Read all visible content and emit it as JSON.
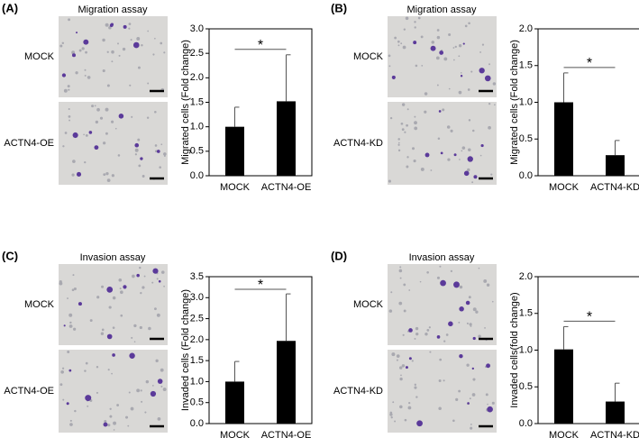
{
  "chart_data": [
    {
      "type": "bar",
      "panel_label": "(A)",
      "image_title": "Migration assay",
      "image_labels": [
        "MOCK",
        "ACTN4-OE"
      ],
      "ylabel": "Migrated cells (Fold change)",
      "categories": [
        "MOCK",
        "ACTN4-OE"
      ],
      "values": [
        1.0,
        1.52
      ],
      "errors": [
        0.4,
        0.95
      ],
      "color": "#000000",
      "significance": "*",
      "ylim": [
        0,
        3
      ],
      "yticks": [
        {
          "value": 0,
          "label": "0.0"
        },
        {
          "value": 0.5,
          "label": "0.5"
        },
        {
          "value": 1,
          "label": "1.0"
        },
        {
          "value": 1.5,
          "label": "1.5"
        },
        {
          "value": 2,
          "label": "2.0"
        },
        {
          "value": 2.5,
          "label": "2.5"
        },
        {
          "value": 3,
          "label": "3.0"
        }
      ]
    },
    {
      "type": "bar",
      "panel_label": "(B)",
      "image_title": "Migration assay",
      "image_labels": [
        "MOCK",
        "ACTN4-KD"
      ],
      "ylabel": "Migrated cells (Fold change)",
      "categories": [
        "MOCK",
        "ACTN4-KD"
      ],
      "values": [
        1.0,
        0.28
      ],
      "errors": [
        0.4,
        0.2
      ],
      "color": "#000000",
      "significance": "*",
      "ylim": [
        0,
        2
      ],
      "yticks": [
        {
          "value": 0,
          "label": "0.0"
        },
        {
          "value": 0.5,
          "label": "0.5"
        },
        {
          "value": 1,
          "label": "1.0"
        },
        {
          "value": 1.5,
          "label": "1.5"
        },
        {
          "value": 2,
          "label": "2.0"
        }
      ]
    },
    {
      "type": "bar",
      "panel_label": "(C)",
      "image_title": "Invasion assay",
      "image_labels": [
        "MOCK",
        "ACTN4-OE"
      ],
      "ylabel": "Invaded cells (Fold change)",
      "categories": [
        "MOCK",
        "ACTN4-OE"
      ],
      "values": [
        1.0,
        1.97
      ],
      "errors": [
        0.48,
        1.12
      ],
      "color": "#000000",
      "significance": "*",
      "ylim": [
        0,
        3.5
      ],
      "yticks": [
        {
          "value": 0,
          "label": "0.0"
        },
        {
          "value": 0.5,
          "label": "0.5"
        },
        {
          "value": 1,
          "label": "1.0"
        },
        {
          "value": 1.5,
          "label": "1.5"
        },
        {
          "value": 2,
          "label": "2.0"
        },
        {
          "value": 2.5,
          "label": "2.5"
        },
        {
          "value": 3,
          "label": "3.0"
        },
        {
          "value": 3.5,
          "label": "3.5"
        }
      ]
    },
    {
      "type": "bar",
      "panel_label": "(D)",
      "image_title": "Invasion assay",
      "image_labels": [
        "MOCK",
        "ACTN4-KD"
      ],
      "ylabel": "Invaded cells(fold change)",
      "categories": [
        "MOCK",
        "ACTN4-KD"
      ],
      "values": [
        1.01,
        0.3
      ],
      "errors": [
        0.31,
        0.25
      ],
      "color": "#000000",
      "significance": "*",
      "ylim": [
        0,
        2
      ],
      "yticks": [
        {
          "value": 0,
          "label": "0.0"
        },
        {
          "value": 0.5,
          "label": "0.5"
        },
        {
          "value": 1,
          "label": "1.0"
        },
        {
          "value": 1.5,
          "label": "1.5"
        },
        {
          "value": 2,
          "label": "2.0"
        }
      ]
    }
  ]
}
